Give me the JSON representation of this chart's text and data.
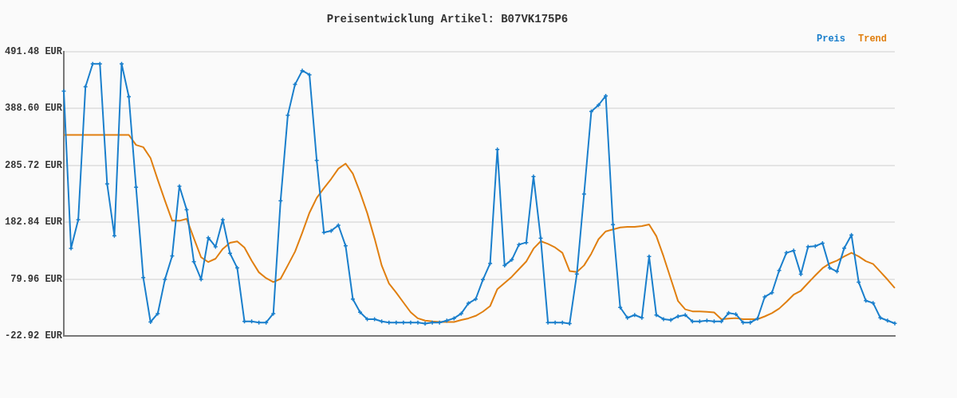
{
  "chart_data": {
    "type": "line",
    "title": "Preisentwicklung Artikel: B07VK175P6",
    "categories": [
      null,
      null,
      null,
      null,
      null,
      null,
      null,
      null,
      null,
      null,
      null,
      null,
      null,
      null,
      null,
      null,
      null,
      null,
      null,
      null,
      null,
      null,
      null,
      null,
      null,
      null,
      null,
      null,
      null,
      null,
      null,
      null,
      null,
      null,
      null,
      null,
      null,
      null,
      null,
      null,
      null,
      null,
      null,
      null,
      null,
      null,
      null,
      null,
      null,
      null,
      null,
      null,
      null,
      null,
      null,
      null,
      null,
      null,
      null,
      null,
      null,
      null,
      null,
      null,
      null,
      null,
      null,
      null,
      null,
      null,
      null,
      null,
      null,
      null,
      null,
      null,
      null,
      null,
      null,
      null,
      null,
      null,
      null,
      null,
      null,
      null,
      null,
      null,
      null,
      null,
      null,
      null,
      null,
      null,
      null,
      null,
      null,
      null,
      null,
      null,
      null,
      null,
      null,
      null,
      null,
      null,
      null,
      null,
      null,
      null,
      null,
      null,
      null,
      null,
      null,
      null
    ],
    "series": [
      {
        "name": "Preis",
        "color": "#1a7fcc",
        "marker": "cross",
        "values": [
          419.9,
          135.4,
          187.4,
          427.9,
          469.3,
          469.3,
          252,
          158.2,
          469.3,
          409.8,
          246,
          82.5,
          2.3,
          17.5,
          79.5,
          121.9,
          247.9,
          205.5,
          111.3,
          79.5,
          154.6,
          138.5,
          187.4,
          126.4,
          100.1,
          3.3,
          3.3,
          1.3,
          1.3,
          17.5,
          221.7,
          376.5,
          432,
          457.1,
          449.6,
          294.8,
          164.2,
          167.3,
          177.3,
          140,
          43.7,
          19.9,
          7.4,
          7.4,
          3.3,
          1.3,
          1.3,
          1.3,
          1.3,
          1.3,
          -0.7,
          1.3,
          1.3,
          4.8,
          8.9,
          17.5,
          36.1,
          43.7,
          78.9,
          108.2,
          314.5,
          104.7,
          114.8,
          142.5,
          146.1,
          265.6,
          153.7,
          1.3,
          1.3,
          1.3,
          -0.7,
          89.1,
          233.8,
          383.1,
          394.7,
          411.3,
          178.3,
          28.5,
          9.9,
          14.9,
          9.9,
          120.8,
          14.9,
          7.4,
          5.9,
          12.4,
          14.9,
          3.3,
          3.3,
          4.8,
          3.3,
          3.3,
          18.4,
          16.5,
          1.3,
          1.3,
          8.4,
          47.7,
          55.3,
          95.6,
          127.4,
          131.4,
          88.6,
          138.5,
          139.5,
          145,
          100.1,
          93.6,
          136,
          159.7,
          74.4,
          40.7,
          36.6,
          9.9,
          4.8,
          -0.2
        ]
      },
      {
        "name": "Trend",
        "color": "#e07f10",
        "values": [
          340.7,
          340.7,
          340.7,
          340.7,
          340.7,
          340.7,
          340.7,
          340.7,
          340.7,
          340.7,
          322.5,
          318.5,
          298.9,
          259.5,
          221.7,
          185.4,
          185.4,
          188.9,
          153.7,
          119.3,
          110.7,
          116.8,
          134.5,
          145.5,
          148.1,
          137,
          113.3,
          92.1,
          81.5,
          74.4,
          80.4,
          104.7,
          129.5,
          163.6,
          200,
          226.7,
          244.4,
          261.1,
          279.7,
          288.8,
          270.6,
          236.9,
          199,
          153.7,
          104.2,
          71.9,
          55.3,
          37.6,
          19.9,
          8.9,
          4.8,
          3.3,
          2.3,
          2.3,
          2.3,
          5.9,
          8.9,
          13.4,
          21,
          31.1,
          61.8,
          72.9,
          84.1,
          98.1,
          111.8,
          134.9,
          148.5,
          143.5,
          137,
          127.4,
          94.6,
          92.6,
          104.7,
          125.9,
          152.1,
          166.2,
          169.7,
          173.3,
          174.3,
          174.3,
          175.8,
          178.8,
          157.6,
          120.8,
          80.4,
          40.2,
          25.1,
          21.5,
          21.5,
          20.5,
          19.5,
          7.4,
          8.4,
          9.3,
          7.4,
          7.4,
          7.4,
          12.4,
          18.4,
          26.6,
          38.7,
          51.7,
          58.8,
          72.9,
          86.5,
          99.6,
          108.2,
          113.3,
          120.8,
          127.4,
          120.8,
          112.2,
          107.2,
          93.1,
          78.9,
          63.8
        ]
      }
    ],
    "ylim": [
      -22.92,
      491.48
    ],
    "yticks": [
      {
        "value": -22.92,
        "label": "-22.92 EUR"
      },
      {
        "value": 79.96,
        "label": "79.96 EUR"
      },
      {
        "value": 182.84,
        "label": "182.84 EUR"
      },
      {
        "value": 285.72,
        "label": "285.72 EUR"
      },
      {
        "value": 388.6,
        "label": "388.60 EUR"
      },
      {
        "value": 491.48,
        "label": "491.48 EUR"
      }
    ],
    "grid": "y",
    "legend": "top right",
    "tick_labels": "y",
    "line_style": "solid"
  }
}
